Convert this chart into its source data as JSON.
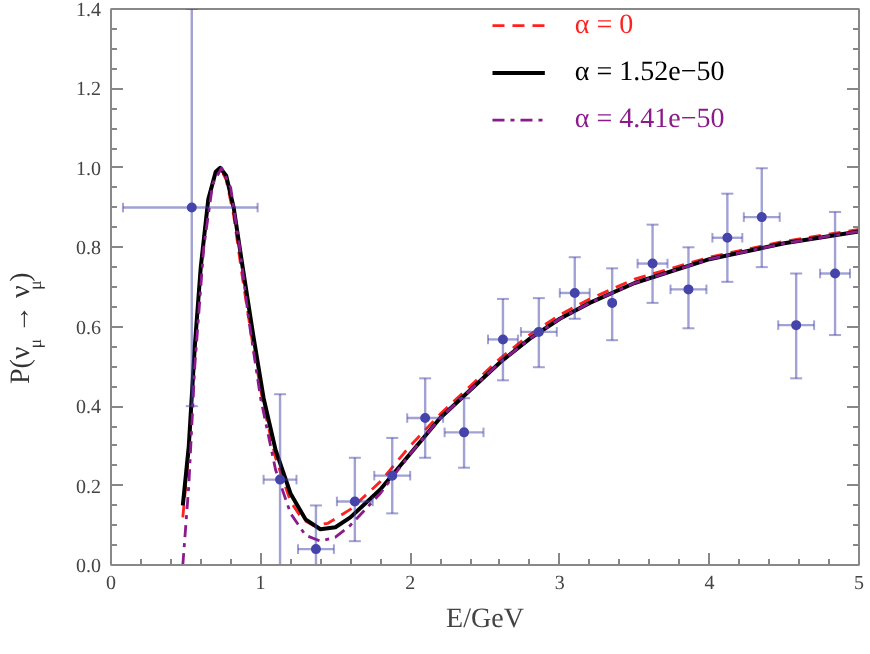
{
  "chart_data": {
    "type": "line",
    "xlabel": "E/GeV",
    "ylabel": "P(ν$_{μ}$ → ν$_{μ}$)",
    "xlim": [
      0,
      5
    ],
    "ylim": [
      0,
      1.4
    ],
    "xticks": [
      0,
      1,
      2,
      3,
      4,
      5
    ],
    "yticks": [
      {
        "value": 0,
        "label": "0.0"
      },
      0.2,
      0.4,
      0.6,
      0.8,
      {
        "value": 1,
        "label": "1.0"
      },
      1.2,
      1.4
    ],
    "grid": false,
    "legend": "top right",
    "series": [
      {
        "name": "α = 0",
        "color": "#ff2020",
        "line_style": "dashed",
        "x": [
          0.48,
          0.52,
          0.56,
          0.6,
          0.65,
          0.7,
          0.73,
          0.77,
          0.82,
          0.88,
          0.95,
          1.02,
          1.1,
          1.2,
          1.28,
          1.35,
          1.45,
          1.6,
          1.8,
          2.0,
          2.2,
          2.4,
          2.6,
          2.8,
          3.0,
          3.2,
          3.5,
          4.0,
          4.5,
          5.0
        ],
        "values": [
          0.12,
          0.28,
          0.54,
          0.75,
          0.92,
          0.99,
          1.0,
          0.97,
          0.88,
          0.72,
          0.55,
          0.4,
          0.27,
          0.16,
          0.115,
          0.1,
          0.105,
          0.14,
          0.21,
          0.3,
          0.38,
          0.45,
          0.52,
          0.58,
          0.63,
          0.67,
          0.72,
          0.775,
          0.815,
          0.845
        ]
      },
      {
        "name": "α = 1.52e−50",
        "color": "#000000",
        "line_style": "solid",
        "x": [
          0.48,
          0.52,
          0.56,
          0.6,
          0.65,
          0.7,
          0.73,
          0.77,
          0.82,
          0.88,
          0.95,
          1.02,
          1.1,
          1.2,
          1.3,
          1.4,
          1.5,
          1.6,
          1.8,
          2.0,
          2.2,
          2.4,
          2.6,
          2.8,
          3.0,
          3.2,
          3.5,
          4.0,
          4.5,
          5.0
        ],
        "values": [
          0.15,
          0.3,
          0.55,
          0.75,
          0.92,
          0.99,
          1.0,
          0.98,
          0.9,
          0.75,
          0.58,
          0.42,
          0.29,
          0.18,
          0.115,
          0.09,
          0.095,
          0.12,
          0.19,
          0.28,
          0.37,
          0.44,
          0.51,
          0.57,
          0.62,
          0.66,
          0.71,
          0.77,
          0.81,
          0.84
        ]
      },
      {
        "name": "α = 4.41e−50",
        "color": "#8b1a8b",
        "line_style": "dashdot",
        "x": [
          0.48,
          0.52,
          0.56,
          0.62,
          0.68,
          0.74,
          0.8,
          0.86,
          0.92,
          1.0,
          1.1,
          1.2,
          1.3,
          1.4,
          1.5,
          1.6,
          1.8,
          2.0,
          2.2,
          2.4,
          2.6,
          2.8,
          3.0,
          3.2,
          3.5,
          4.0,
          4.5,
          5.0
        ],
        "values": [
          0.0,
          0.2,
          0.5,
          0.8,
          0.96,
          1.0,
          0.95,
          0.8,
          0.62,
          0.42,
          0.24,
          0.13,
          0.075,
          0.06,
          0.07,
          0.1,
          0.18,
          0.28,
          0.37,
          0.44,
          0.51,
          0.57,
          0.62,
          0.66,
          0.71,
          0.77,
          0.81,
          0.84
        ]
      },
      {
        "type": "scatter",
        "color": "#4444aa",
        "marker": "circle",
        "x": [
          0.54,
          1.13,
          1.37,
          1.63,
          1.88,
          2.1,
          2.36,
          2.62,
          2.86,
          3.1,
          3.35,
          3.62,
          3.86,
          4.12,
          4.35,
          4.58,
          4.84
        ],
        "values": [
          0.9,
          0.215,
          0.04,
          0.16,
          0.225,
          0.37,
          0.334,
          0.568,
          0.587,
          0.685,
          0.66,
          0.759,
          0.694,
          0.824,
          0.876,
          0.604,
          0.734
        ],
        "errors": [
          [
            0.4,
            1.4
          ],
          [
            0.0,
            0.43
          ],
          [
            0.0,
            0.15
          ],
          [
            0.06,
            0.27
          ],
          [
            0.13,
            0.32
          ],
          [
            0.27,
            0.47
          ],
          [
            0.245,
            0.42
          ],
          [
            0.465,
            0.67
          ],
          [
            0.498,
            0.672
          ],
          [
            0.62,
            0.775
          ],
          [
            0.566,
            0.747
          ],
          [
            0.66,
            0.857
          ],
          [
            0.596,
            0.8
          ],
          [
            0.713,
            0.935
          ],
          [
            0.75,
            0.999
          ],
          [
            0.47,
            0.734
          ],
          [
            0.579,
            0.889
          ]
        ],
        "xerrors": [
          [
            0.08,
            0.98
          ],
          0.11,
          0.12,
          0.12,
          0.12,
          0.12,
          0.13,
          0.1,
          0.12,
          0.1,
          0.0,
          0.1,
          0.12,
          0.1,
          0.12,
          0.12,
          0.1
        ]
      }
    ]
  }
}
